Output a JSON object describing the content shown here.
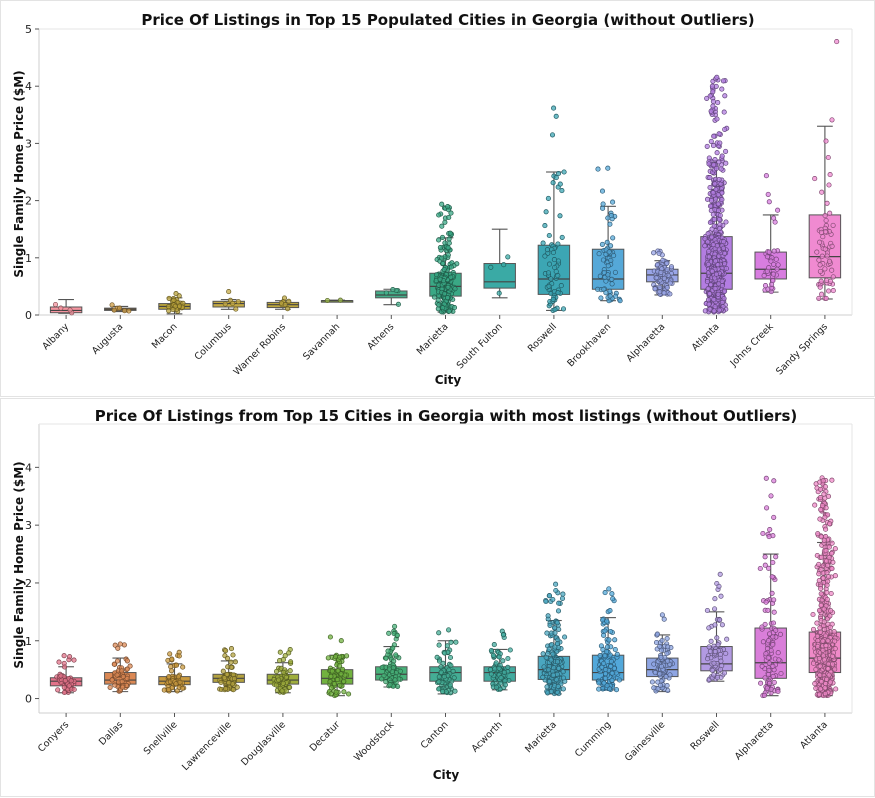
{
  "chart_data": [
    {
      "type": "box",
      "title": "Price Of Listings in Top 15 Populated Cities in Georgia (without Outliers)",
      "xlabel": "City",
      "ylabel": "Single Family Home Price ($M)",
      "ylim": [
        0,
        5
      ],
      "yticks": [
        0,
        1,
        2,
        3,
        4,
        5
      ],
      "categories": [
        "Albany",
        "Augusta",
        "Macon",
        "Columbus",
        "Warner Robins",
        "Savannah",
        "Athens",
        "Marietta",
        "South Fulton",
        "Roswell",
        "Brookhaven",
        "Alpharetta",
        "Atlanta",
        "Johns Creek",
        "Sandy Springs"
      ],
      "colors": [
        "#f5949f",
        "#cf9d46",
        "#b8a23a",
        "#c4aa45",
        "#bca63f",
        "#9ab54a",
        "#45ae8a",
        "#3aa885",
        "#3aaaa5",
        "#3ca6b4",
        "#55a8d8",
        "#9aa6e8",
        "#b37de2",
        "#d87de0",
        "#f08ad1"
      ],
      "stats": [
        {
          "min": 0.03,
          "q1": 0.04,
          "median": 0.08,
          "q3": 0.14,
          "max": 0.27,
          "n": 4
        },
        {
          "min": 0.06,
          "q1": 0.08,
          "median": 0.1,
          "q3": 0.12,
          "max": 0.15,
          "n": 6
        },
        {
          "min": 0.02,
          "q1": 0.1,
          "median": 0.15,
          "q3": 0.2,
          "max": 0.3,
          "n": 28
        },
        {
          "min": 0.1,
          "q1": 0.14,
          "median": 0.2,
          "q3": 0.24,
          "max": 0.27,
          "n": 6
        },
        {
          "min": 0.1,
          "q1": 0.13,
          "median": 0.18,
          "q3": 0.22,
          "max": 0.25,
          "n": 8
        },
        {
          "min": 0.24,
          "q1": 0.24,
          "median": 0.25,
          "q3": 0.25,
          "max": 0.26,
          "n": 2
        },
        {
          "min": 0.18,
          "q1": 0.3,
          "median": 0.35,
          "q3": 0.42,
          "max": 0.45,
          "n": 5
        },
        {
          "min": 0.05,
          "q1": 0.33,
          "median": 0.5,
          "q3": 0.73,
          "max": 1.35,
          "n": 220
        },
        {
          "min": 0.3,
          "q1": 0.47,
          "median": 0.58,
          "q3": 0.9,
          "max": 1.5,
          "n": 4
        },
        {
          "min": 0.08,
          "q1": 0.36,
          "median": 0.63,
          "q3": 1.22,
          "max": 2.5,
          "n": 70
        },
        {
          "min": 0.25,
          "q1": 0.45,
          "median": 0.63,
          "q3": 1.15,
          "max": 1.9,
          "n": 65
        },
        {
          "min": 0.35,
          "q1": 0.58,
          "median": 0.7,
          "q3": 0.8,
          "max": 0.95,
          "n": 110
        },
        {
          "min": 0.05,
          "q1": 0.45,
          "median": 0.73,
          "q3": 1.37,
          "max": 2.7,
          "n": 650
        },
        {
          "min": 0.4,
          "q1": 0.63,
          "median": 0.8,
          "q3": 1.1,
          "max": 1.75,
          "n": 40
        },
        {
          "min": 0.28,
          "q1": 0.65,
          "median": 1.02,
          "q3": 1.75,
          "max": 3.3,
          "n": 65
        }
      ]
    },
    {
      "type": "box",
      "title": "Price Of Listings from Top 15 Cities in Georgia with most listings (without Outliers)",
      "xlabel": "City",
      "ylabel": "Single Family Home Price ($M)",
      "ylim": [
        -0.25,
        4.75
      ],
      "yticks": [
        0,
        1,
        2,
        3,
        4
      ],
      "categories": [
        "Conyers",
        "Dallas",
        "Snellville",
        "Lawrenceville",
        "Douglasville",
        "Decatur",
        "Woodstock",
        "Canton",
        "Acworth",
        "Marietta",
        "Cumming",
        "Gainesville",
        "Roswell",
        "Alpharetta",
        "Atlanta"
      ],
      "colors": [
        "#e3738a",
        "#db8854",
        "#c99a3f",
        "#b3a13f",
        "#9fae3d",
        "#72b23f",
        "#48b27a",
        "#44ad95",
        "#42ab9f",
        "#4aa7c0",
        "#52a8da",
        "#8ea5e3",
        "#b29ae2",
        "#d97ed9",
        "#f08ac8"
      ],
      "stats": [
        {
          "min": 0.1,
          "q1": 0.22,
          "median": 0.3,
          "q3": 0.36,
          "max": 0.55,
          "n": 60
        },
        {
          "min": 0.12,
          "q1": 0.25,
          "median": 0.32,
          "q3": 0.45,
          "max": 0.7,
          "n": 60
        },
        {
          "min": 0.12,
          "q1": 0.24,
          "median": 0.3,
          "q3": 0.38,
          "max": 0.6,
          "n": 60
        },
        {
          "min": 0.15,
          "q1": 0.28,
          "median": 0.35,
          "q3": 0.42,
          "max": 0.65,
          "n": 75
        },
        {
          "min": 0.1,
          "q1": 0.25,
          "median": 0.32,
          "q3": 0.42,
          "max": 0.62,
          "n": 75
        },
        {
          "min": 0.05,
          "q1": 0.25,
          "median": 0.35,
          "q3": 0.5,
          "max": 0.75,
          "n": 75
        },
        {
          "min": 0.2,
          "q1": 0.32,
          "median": 0.42,
          "q3": 0.55,
          "max": 0.9,
          "n": 80
        },
        {
          "min": 0.08,
          "q1": 0.3,
          "median": 0.45,
          "q3": 0.55,
          "max": 1.0,
          "n": 80
        },
        {
          "min": 0.15,
          "q1": 0.3,
          "median": 0.45,
          "q3": 0.55,
          "max": 0.85,
          "n": 80
        },
        {
          "min": 0.08,
          "q1": 0.33,
          "median": 0.5,
          "q3": 0.73,
          "max": 1.35,
          "n": 220
        },
        {
          "min": 0.15,
          "q1": 0.32,
          "median": 0.45,
          "q3": 0.75,
          "max": 1.4,
          "n": 120
        },
        {
          "min": 0.12,
          "q1": 0.38,
          "median": 0.5,
          "q3": 0.7,
          "max": 1.1,
          "n": 90
        },
        {
          "min": 0.3,
          "q1": 0.48,
          "median": 0.6,
          "q3": 0.9,
          "max": 1.5,
          "n": 70
        },
        {
          "min": 0.05,
          "q1": 0.35,
          "median": 0.62,
          "q3": 1.22,
          "max": 2.5,
          "n": 110
        },
        {
          "min": 0.05,
          "q1": 0.45,
          "median": 0.7,
          "q3": 1.15,
          "max": 2.7,
          "n": 650
        }
      ]
    }
  ]
}
